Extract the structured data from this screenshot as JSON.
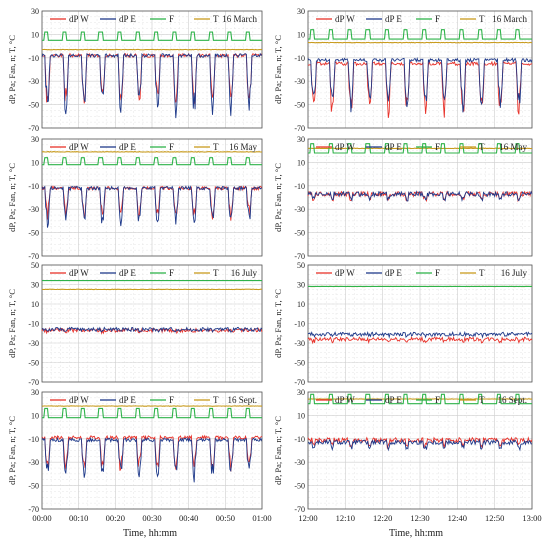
{
  "figure": {
    "xlabel": "Time, hh:mm",
    "ylabel": "dP, Pa; Fan, n; T, °C",
    "legend_labels": [
      "dP W",
      "dP E",
      "F",
      "T"
    ],
    "colors": {
      "dPW": "#e8322a",
      "dPE": "#1f3a8a",
      "F": "#2fb34a",
      "T": "#c89b1e"
    }
  },
  "chart_data": [
    {
      "type": "line",
      "panel": "left-1",
      "period": "00:00–01:00",
      "date_label": "16 March",
      "ylim": [
        -70,
        30
      ],
      "yticks": [
        30,
        10,
        -10,
        -30,
        -50,
        -70
      ],
      "xticks": [
        "00:00",
        "00:10",
        "00:20",
        "00:30",
        "00:40",
        "00:50",
        "01:00"
      ],
      "x_range_min": [
        0,
        60
      ],
      "series": [
        {
          "name": "dP W",
          "pattern": "periodic dips",
          "baseline": -8,
          "dip_to": -48,
          "cycle_min": 5
        },
        {
          "name": "dP E",
          "pattern": "periodic dips",
          "baseline": -8,
          "dip_to": -52,
          "cycle_min": 5
        },
        {
          "name": "F",
          "pattern": "square wave",
          "low": 5,
          "high": 12,
          "cycle_min": 5
        },
        {
          "name": "T",
          "pattern": "flat",
          "value": -3
        }
      ]
    },
    {
      "type": "line",
      "panel": "right-1",
      "period": "12:00–13:00",
      "date_label": "16 March",
      "ylim": [
        -70,
        30
      ],
      "yticks": [
        30,
        10,
        -10,
        -30,
        -50,
        -70
      ],
      "xticks": [
        "12:00",
        "12:10",
        "12:20",
        "12:30",
        "12:40",
        "12:50",
        "13:00"
      ],
      "x_range_min": [
        0,
        60
      ],
      "series": [
        {
          "name": "dP W",
          "pattern": "periodic dips",
          "baseline": -15,
          "dip_to": -55,
          "cycle_min": 5
        },
        {
          "name": "dP E",
          "pattern": "periodic dips",
          "baseline": -12,
          "dip_to": -50,
          "cycle_min": 5
        },
        {
          "name": "F",
          "pattern": "square wave",
          "low": 6,
          "high": 14,
          "cycle_min": 5
        },
        {
          "name": "T",
          "pattern": "flat",
          "value": 3
        }
      ]
    },
    {
      "type": "line",
      "panel": "left-2",
      "period": "00:00–01:00",
      "date_label": "16 May",
      "ylim": [
        -70,
        30
      ],
      "yticks": [
        30,
        10,
        -10,
        -30,
        -50,
        -70
      ],
      "xticks": [
        "00:00",
        "00:10",
        "00:20",
        "00:30",
        "00:40",
        "00:50",
        "01:00"
      ],
      "x_range_min": [
        0,
        60
      ],
      "series": [
        {
          "name": "dP W",
          "pattern": "periodic dips",
          "baseline": -12,
          "dip_to": -35,
          "cycle_min": 5
        },
        {
          "name": "dP E",
          "pattern": "periodic dips",
          "baseline": -12,
          "dip_to": -40,
          "cycle_min": 5
        },
        {
          "name": "F",
          "pattern": "square wave",
          "low": 8,
          "high": 14,
          "cycle_min": 5
        },
        {
          "name": "T",
          "pattern": "flat",
          "value": 19
        }
      ]
    },
    {
      "type": "line",
      "panel": "right-2",
      "period": "12:00–13:00",
      "date_label": "16 May",
      "ylim": [
        -70,
        30
      ],
      "yticks": [
        30,
        10,
        -10,
        -30,
        -50,
        -70
      ],
      "xticks": [
        "12:00",
        "12:10",
        "12:20",
        "12:30",
        "12:40",
        "12:50",
        "13:00"
      ],
      "x_range_min": [
        0,
        60
      ],
      "series": [
        {
          "name": "dP W",
          "pattern": "noisy",
          "baseline": -17,
          "dip_to": -25,
          "cycle_min": 5
        },
        {
          "name": "dP E",
          "pattern": "noisy",
          "baseline": -17,
          "dip_to": -25,
          "cycle_min": 5
        },
        {
          "name": "F",
          "pattern": "square wave",
          "low": 18,
          "high": 26,
          "cycle_min": 5
        },
        {
          "name": "T",
          "pattern": "flat",
          "value": 22
        }
      ]
    },
    {
      "type": "line",
      "panel": "left-3",
      "period": "00:00–01:00",
      "date_label": "16 July",
      "ylim": [
        -70,
        50
      ],
      "yticks": [
        50,
        30,
        10,
        -10,
        -30,
        -50,
        -70
      ],
      "xticks": [
        "00:00",
        "00:10",
        "00:20",
        "00:30",
        "00:40",
        "00:50",
        "01:00"
      ],
      "x_range_min": [
        0,
        60
      ],
      "series": [
        {
          "name": "dP W",
          "pattern": "noisy",
          "baseline": -17,
          "dip_to": -19,
          "cycle_min": 5
        },
        {
          "name": "dP E",
          "pattern": "noisy",
          "baseline": -16,
          "dip_to": -18,
          "cycle_min": 5
        },
        {
          "name": "F",
          "pattern": "constant",
          "low": 34,
          "high": 34,
          "cycle_min": 5
        },
        {
          "name": "T",
          "pattern": "flat",
          "value": 25
        }
      ]
    },
    {
      "type": "line",
      "panel": "right-3",
      "period": "12:00–13:00",
      "date_label": "16 July",
      "ylim": [
        -70,
        50
      ],
      "yticks": [
        50,
        30,
        10,
        -10,
        -30,
        -50,
        -70
      ],
      "xticks": [
        "12:00",
        "12:10",
        "12:20",
        "12:30",
        "12:40",
        "12:50",
        "13:00"
      ],
      "x_range_min": [
        0,
        60
      ],
      "series": [
        {
          "name": "dP W",
          "pattern": "noisy",
          "baseline": -26,
          "dip_to": -30,
          "cycle_min": 5
        },
        {
          "name": "dP E",
          "pattern": "noisy",
          "baseline": -21,
          "dip_to": -23,
          "cycle_min": 5
        },
        {
          "name": "F",
          "pattern": "constant",
          "low": 28,
          "high": 28,
          "cycle_min": 5
        },
        {
          "name": "T",
          "pattern": "flat",
          "value": 28
        }
      ]
    },
    {
      "type": "line",
      "panel": "left-4",
      "period": "00:00–01:00",
      "date_label": "16 Sept.",
      "ylim": [
        -70,
        30
      ],
      "yticks": [
        30,
        10,
        -10,
        -30,
        -50,
        -70
      ],
      "xticks": [
        "00:00",
        "00:10",
        "00:20",
        "00:30",
        "00:40",
        "00:50",
        "01:00"
      ],
      "x_range_min": [
        0,
        60
      ],
      "series": [
        {
          "name": "dP W",
          "pattern": "periodic dips",
          "baseline": -9,
          "dip_to": -35,
          "cycle_min": 5
        },
        {
          "name": "dP E",
          "pattern": "periodic dips",
          "baseline": -11,
          "dip_to": -40,
          "cycle_min": 5
        },
        {
          "name": "F",
          "pattern": "square wave",
          "low": 8,
          "high": 16,
          "cycle_min": 5
        },
        {
          "name": "T",
          "pattern": "flat",
          "value": 18
        }
      ]
    },
    {
      "type": "line",
      "panel": "right-4",
      "period": "12:00–13:00",
      "date_label": "16 Sept.",
      "ylim": [
        -70,
        30
      ],
      "yticks": [
        30,
        10,
        -10,
        -30,
        -50,
        -70
      ],
      "xticks": [
        "12:00",
        "12:10",
        "12:20",
        "12:30",
        "12:40",
        "12:50",
        "13:00"
      ],
      "x_range_min": [
        0,
        60
      ],
      "series": [
        {
          "name": "dP W",
          "pattern": "noisy",
          "baseline": -11,
          "dip_to": -20,
          "cycle_min": 5
        },
        {
          "name": "dP E",
          "pattern": "noisy",
          "baseline": -13,
          "dip_to": -22,
          "cycle_min": 5
        },
        {
          "name": "F",
          "pattern": "square wave",
          "low": 20,
          "high": 28,
          "cycle_min": 5
        },
        {
          "name": "T",
          "pattern": "flat",
          "value": 24
        }
      ]
    }
  ]
}
